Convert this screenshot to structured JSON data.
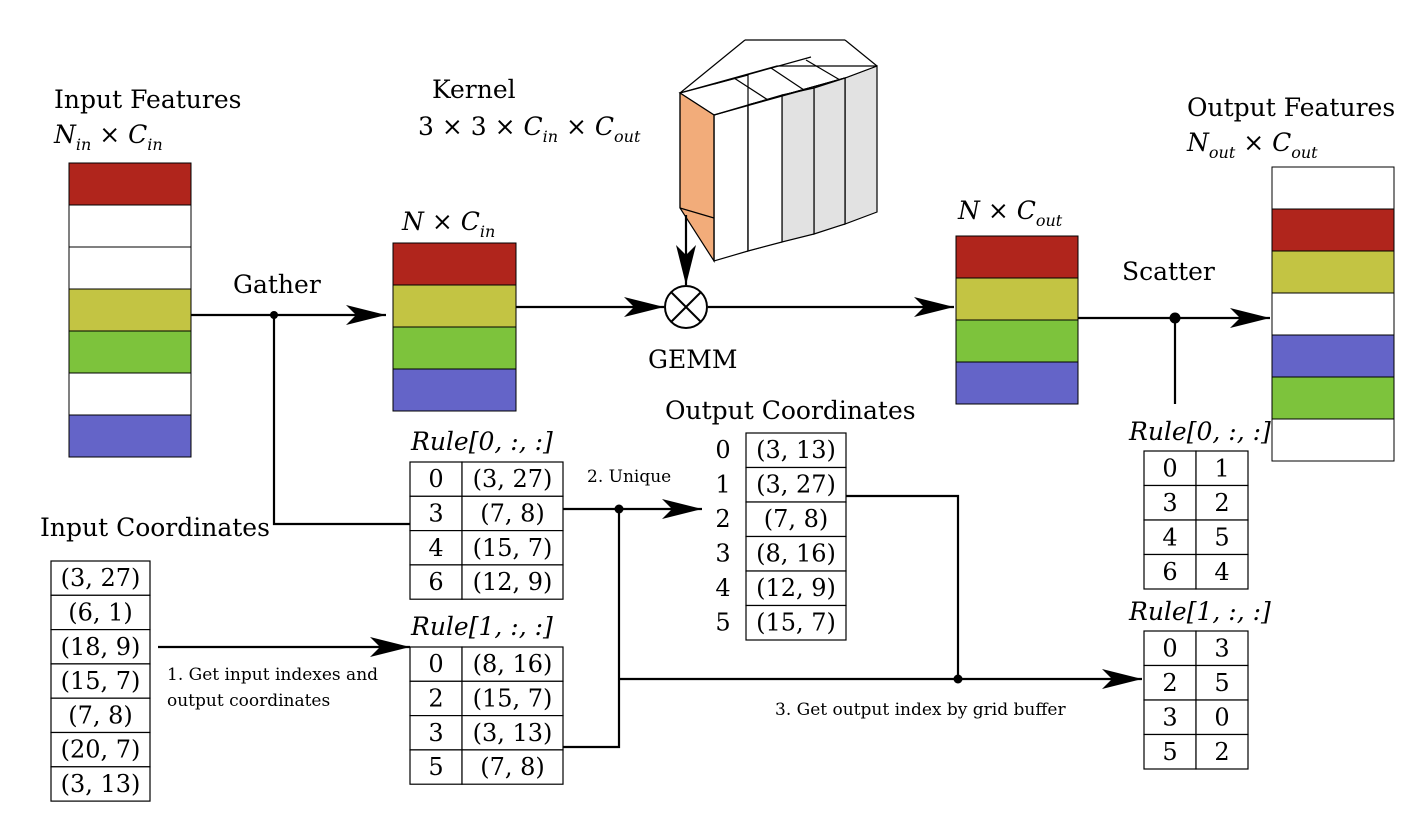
{
  "colors": {
    "red": "#b0251c",
    "olive": "#c3c443",
    "green": "#7dc33c",
    "blue": "#6464c8",
    "white": "#ffffff",
    "kernel_highlight": "#f2ac7a",
    "kernel_side": "#e2e2e2"
  },
  "input_features": {
    "title": "Input Features",
    "dims": "N_in × C_in",
    "rows": [
      "red",
      "white",
      "white",
      "olive",
      "green",
      "white",
      "blue"
    ]
  },
  "gathered": {
    "dims": "N × C_in",
    "rows": [
      "red",
      "olive",
      "green",
      "blue"
    ]
  },
  "kernel": {
    "title": "Kernel",
    "dims": "3 × 3 × C_in × C_out"
  },
  "gemm_label": "GEMM",
  "output_gemm": {
    "dims": "N × C_out",
    "rows": [
      "red",
      "olive",
      "green",
      "blue"
    ]
  },
  "output_features": {
    "title": "Output Features",
    "dims": "N_out × C_out",
    "rows": [
      "white",
      "red",
      "olive",
      "white",
      "blue",
      "green",
      "white"
    ]
  },
  "gather_label": "Gather",
  "scatter_label": "Scatter",
  "input_coordinates": {
    "title": "Input Coordinates",
    "rows": [
      "(3, 27)",
      "(6, 1)",
      "(18, 9)",
      "(15, 7)",
      "(7, 8)",
      "(20, 7)",
      "(3, 13)"
    ]
  },
  "step1": {
    "line1": "1. Get input indexes and",
    "line2": "output coordinates"
  },
  "step2": "2. Unique",
  "step3": "3. Get output index by grid buffer",
  "rule0_left": {
    "title": "Rule[0, :, :]",
    "rows": [
      [
        "0",
        "(3, 27)"
      ],
      [
        "3",
        "(7, 8)"
      ],
      [
        "4",
        "(15, 7)"
      ],
      [
        "6",
        "(12, 9)"
      ]
    ]
  },
  "rule1_left": {
    "title": "Rule[1, :, :]",
    "rows": [
      [
        "0",
        "(8, 16)"
      ],
      [
        "2",
        "(15, 7)"
      ],
      [
        "3",
        "(3, 13)"
      ],
      [
        "5",
        "(7, 8)"
      ]
    ]
  },
  "output_coordinates": {
    "title": "Output Coordinates",
    "rows": [
      [
        "0",
        "(3, 13)"
      ],
      [
        "1",
        "(3, 27)"
      ],
      [
        "2",
        "(7, 8)"
      ],
      [
        "3",
        "(8, 16)"
      ],
      [
        "4",
        "(12, 9)"
      ],
      [
        "5",
        "(15, 7)"
      ]
    ]
  },
  "rule0_right": {
    "title": "Rule[0, :, :]",
    "rows": [
      [
        "0",
        "1"
      ],
      [
        "3",
        "2"
      ],
      [
        "4",
        "5"
      ],
      [
        "6",
        "4"
      ]
    ]
  },
  "rule1_right": {
    "title": "Rule[1, :, :]",
    "rows": [
      [
        "0",
        "3"
      ],
      [
        "2",
        "5"
      ],
      [
        "3",
        "0"
      ],
      [
        "5",
        "2"
      ]
    ]
  }
}
